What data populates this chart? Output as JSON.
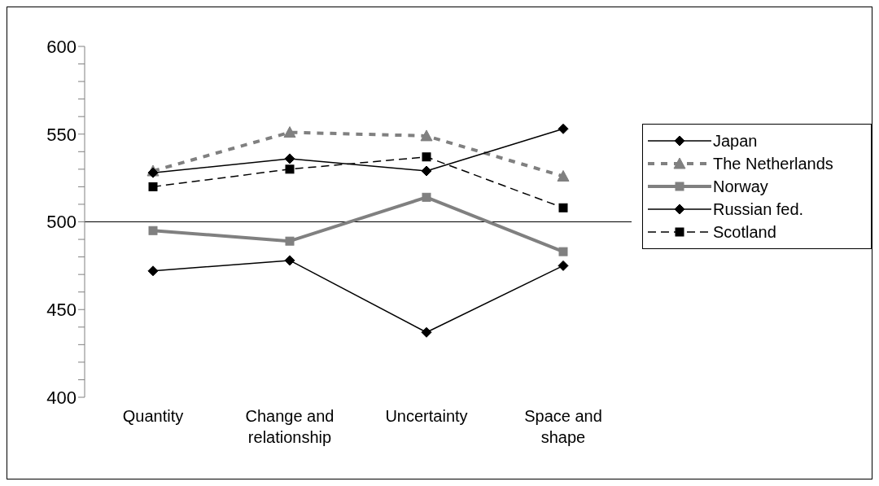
{
  "chart_data": {
    "type": "line",
    "categories": [
      "Quantity",
      "Change and relationship",
      "Uncertainty",
      "Space and shape"
    ],
    "series": [
      {
        "name": "Japan",
        "color": "#000000",
        "values": [
          528,
          536,
          529,
          553
        ],
        "marker": "diamond",
        "line_style": "solid"
      },
      {
        "name": "The Netherlands",
        "color": "#808080",
        "values": [
          529,
          551,
          549,
          526
        ],
        "marker": "triangle",
        "line_style": "dotted"
      },
      {
        "name": "Norway",
        "color": "#808080",
        "values": [
          495,
          489,
          514,
          483
        ],
        "marker": "square",
        "line_style": "solid"
      },
      {
        "name": "Russian fed.",
        "color": "#000000",
        "values": [
          472,
          478,
          437,
          475
        ],
        "marker": "diamond",
        "line_style": "solid"
      },
      {
        "name": "Scotland",
        "color": "#000000",
        "values": [
          520,
          530,
          537,
          508
        ],
        "marker": "square",
        "line_style": "dashed"
      }
    ],
    "ylim": [
      400,
      600
    ],
    "yticks": [
      400,
      {
        "value": 410,
        "label": null
      },
      {
        "value": 420,
        "label": null
      },
      {
        "value": 430,
        "label": null
      },
      {
        "value": 440,
        "label": null
      },
      450,
      {
        "value": 460,
        "label": null
      },
      {
        "value": 470,
        "label": null
      },
      {
        "value": 480,
        "label": null
      },
      {
        "value": 490,
        "label": null
      },
      500,
      {
        "value": 510,
        "label": null
      },
      {
        "value": 520,
        "label": null
      },
      {
        "value": 530,
        "label": null
      },
      {
        "value": 540,
        "label": null
      },
      550,
      {
        "value": 560,
        "label": null
      },
      {
        "value": 570,
        "label": null
      },
      {
        "value": 580,
        "label": null
      },
      {
        "value": 590,
        "label": null
      },
      600
    ],
    "ref_lines": [
      {
        "axis": "y",
        "value": 500,
        "color": "#000000"
      }
    ],
    "grid": false,
    "legend": "right"
  }
}
